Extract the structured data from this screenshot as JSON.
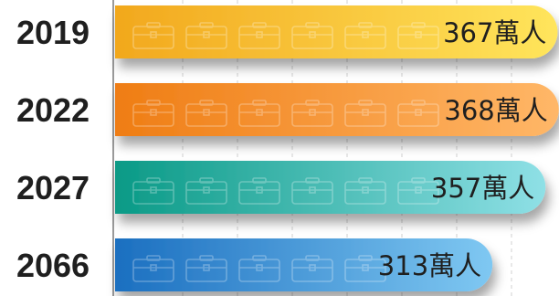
{
  "chart_data": {
    "type": "bar",
    "orientation": "horizontal",
    "categories": [
      "2019",
      "2022",
      "2027",
      "2066"
    ],
    "values": [
      367,
      368,
      357,
      313
    ],
    "value_labels": [
      "367萬人",
      "368萬人",
      "357萬人",
      "313萬人"
    ],
    "unit": "萬人",
    "xlim": [
      0,
      380
    ],
    "grid": true,
    "colors": {
      "2019": [
        "#f2a81d",
        "#ffe55c"
      ],
      "2022": [
        "#ef7d14",
        "#ffb768"
      ],
      "2027": [
        "#0a9a86",
        "#8fe0e6"
      ],
      "2066": [
        "#1b6fc0",
        "#7fc8f2"
      ]
    },
    "icon": "briefcase-icon"
  }
}
